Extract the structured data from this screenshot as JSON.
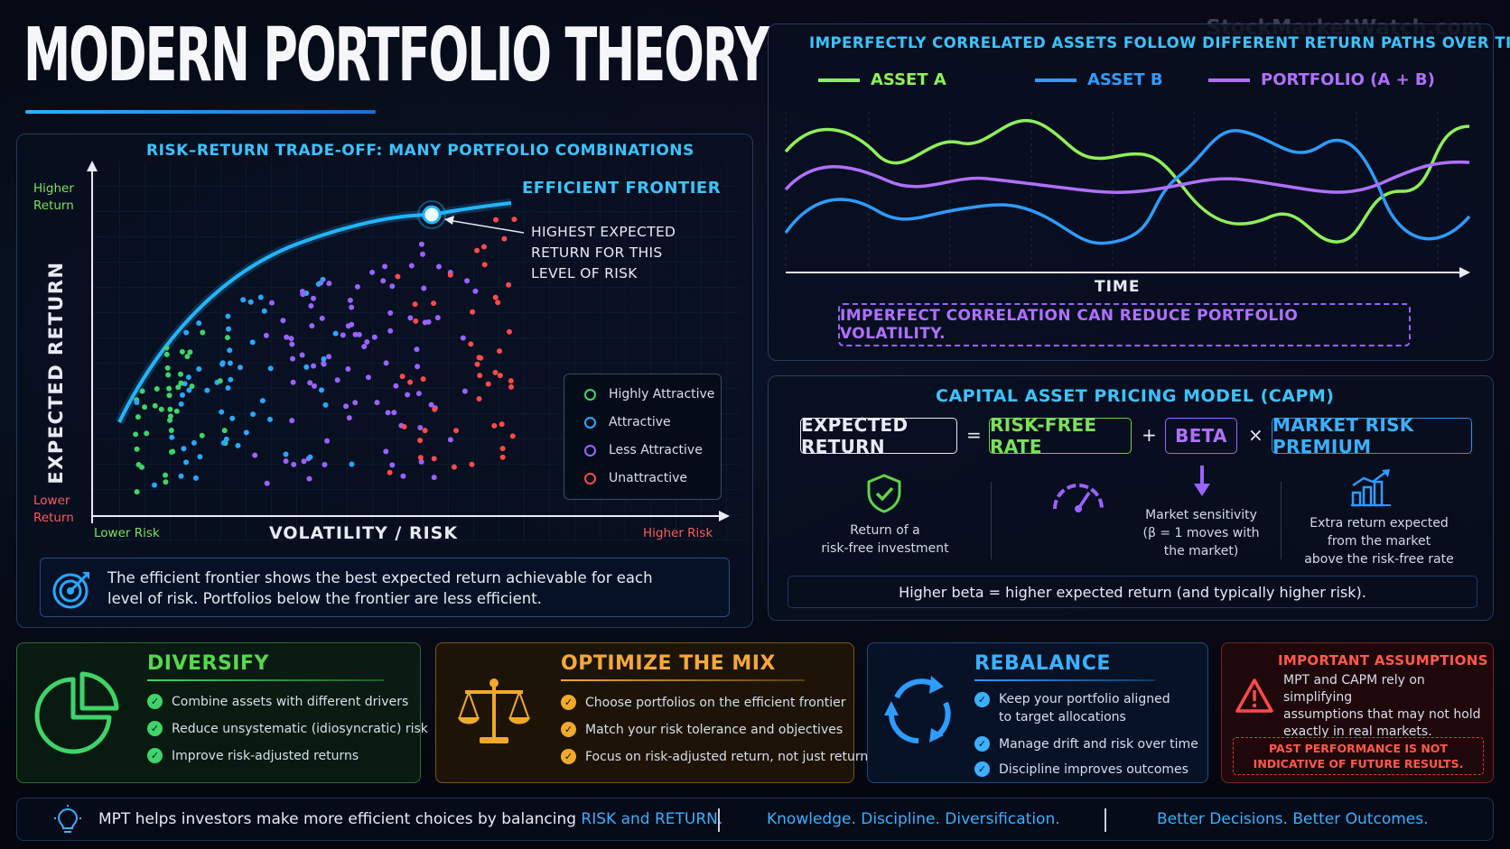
{
  "title": "MODERN PORTFOLIO THEORY",
  "watermark": "StockMarketWatch.com",
  "risk_return": {
    "heading": "RISK–RETURN TRADE-OFF: MANY PORTFOLIO COMBINATIONS",
    "frontier_label": "EFFICIENT FRONTIER",
    "callout": [
      "HIGHEST EXPECTED",
      "RETURN FOR THIS",
      "LEVEL OF RISK"
    ],
    "y_axis_label": "EXPECTED RETURN",
    "x_axis_label": "VOLATILITY / RISK",
    "higher_return": [
      "Higher",
      "Return"
    ],
    "lower_return": [
      "Lower",
      "Return"
    ],
    "lower_risk": "Lower Risk",
    "higher_risk": "Higher Risk",
    "legend": [
      {
        "label": "Highly Attractive",
        "color": "#3fd46a"
      },
      {
        "label": "Attractive",
        "color": "#2aa7ff"
      },
      {
        "label": "Less Attractive",
        "color": "#9a63ff"
      },
      {
        "label": "Unattractive",
        "color": "#ff4a4a"
      }
    ],
    "info": "The efficient frontier shows the best expected return achievable for each level of risk. Portfolios below the frontier are less efficient.",
    "info_line1": "The efficient frontier shows the best expected return achievable for each",
    "info_line2": "level of risk. Portfolios below the frontier are less efficient."
  },
  "correlation": {
    "heading": "IMPERFECTLY CORRELATED ASSETS FOLLOW DIFFERENT RETURN PATHS OVER TIME",
    "legend": [
      {
        "label": "ASSET A",
        "color": "#8ef05a"
      },
      {
        "label": "ASSET B",
        "color": "#2f9cff"
      },
      {
        "label": "PORTFOLIO (A + B)",
        "color": "#b070ff"
      }
    ],
    "x_axis_label": "TIME",
    "note": "IMPERFECT CORRELATION CAN REDUCE PORTFOLIO VOLATILITY."
  },
  "capm": {
    "heading": "CAPITAL ASSET PRICING MODEL (CAPM)",
    "expected_return": "EXPECTED RETURN",
    "equals": "=",
    "risk_free": "RISK-FREE RATE",
    "plus": "+",
    "beta": "BETA",
    "times": "×",
    "premium": "MARKET RISK PREMIUM",
    "desc_rf": [
      "Return of a",
      "risk-free investment"
    ],
    "desc_beta": [
      "Market sensitivity",
      "(β = 1 moves with",
      "the market)"
    ],
    "desc_premium": [
      "Extra return expected",
      "from the market",
      "above the risk-free rate"
    ],
    "footnote": "Higher beta = higher expected return (and typically higher risk)."
  },
  "diversify": {
    "title": "DIVERSIFY",
    "bullets": [
      "Combine assets with different drivers",
      "Reduce unsystematic (idiosyncratic) risk",
      "Improve risk-adjusted returns"
    ]
  },
  "optimize": {
    "title": "OPTIMIZE THE MIX",
    "bullets": [
      "Choose portfolios on the efficient frontier",
      "Match your risk tolerance and objectives",
      "Focus on risk-adjusted return, not just return"
    ]
  },
  "rebalance": {
    "title": "REBALANCE",
    "bullets": [
      [
        "Keep your portfolio aligned",
        "to target allocations"
      ],
      [
        "Manage drift and risk over time"
      ],
      [
        "Discipline improves outcomes"
      ]
    ]
  },
  "assumptions": {
    "title": "IMPORTANT ASSUMPTIONS",
    "text": [
      "MPT and CAPM rely on simplifying",
      "assumptions that may not hold",
      "exactly in real markets."
    ],
    "disclaimer": [
      "PAST PERFORMANCE IS NOT",
      "INDICATIVE OF FUTURE RESULTS."
    ]
  },
  "footer": {
    "text_prefix": "MPT helps investors make more efficient choices by balancing ",
    "text_highlight": "RISK and RETURN.",
    "slogan1": "Knowledge. Discipline. Diversification.",
    "slogan2": "Better Decisions. Better Outcomes."
  }
}
